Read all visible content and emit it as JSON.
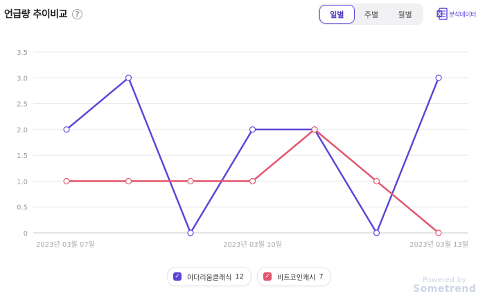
{
  "header": {
    "title": "언급량 추이비교",
    "help_icon": "?"
  },
  "tabs": [
    {
      "label": "일별",
      "active": true
    },
    {
      "label": "주별",
      "active": false
    },
    {
      "label": "월별",
      "active": false
    }
  ],
  "export": {
    "label": "분석데이터",
    "icon": "excel-icon"
  },
  "chart_data": {
    "type": "line",
    "x": [
      "2023-03-07",
      "2023-03-08",
      "2023-03-09",
      "2023-03-10",
      "2023-03-11",
      "2023-03-12",
      "2023-03-13"
    ],
    "x_tick_labels": [
      {
        "index": 0,
        "label": "2023년 03월 07일"
      },
      {
        "index": 3,
        "label": "2023년 03월 10일"
      },
      {
        "index": 6,
        "label": "2023년 03월 13일"
      }
    ],
    "y_ticks": [
      "0",
      "0.5",
      "1.0",
      "1.5",
      "2.0",
      "2.5",
      "3.0",
      "3.5"
    ],
    "ylim": [
      0,
      3.5
    ],
    "grid": true,
    "legend_position": "bottom",
    "series": [
      {
        "name": "이더리움클래식",
        "total": "12",
        "color": "#5b47d6",
        "values": [
          2,
          3,
          0,
          2,
          2,
          0,
          3
        ]
      },
      {
        "name": "비트코인캐시",
        "total": "7",
        "color": "#e2566e",
        "values": [
          1,
          1,
          1,
          1,
          2,
          1,
          0
        ]
      }
    ]
  },
  "watermark": {
    "line1": "Powered by",
    "line2": "Sometrend"
  }
}
